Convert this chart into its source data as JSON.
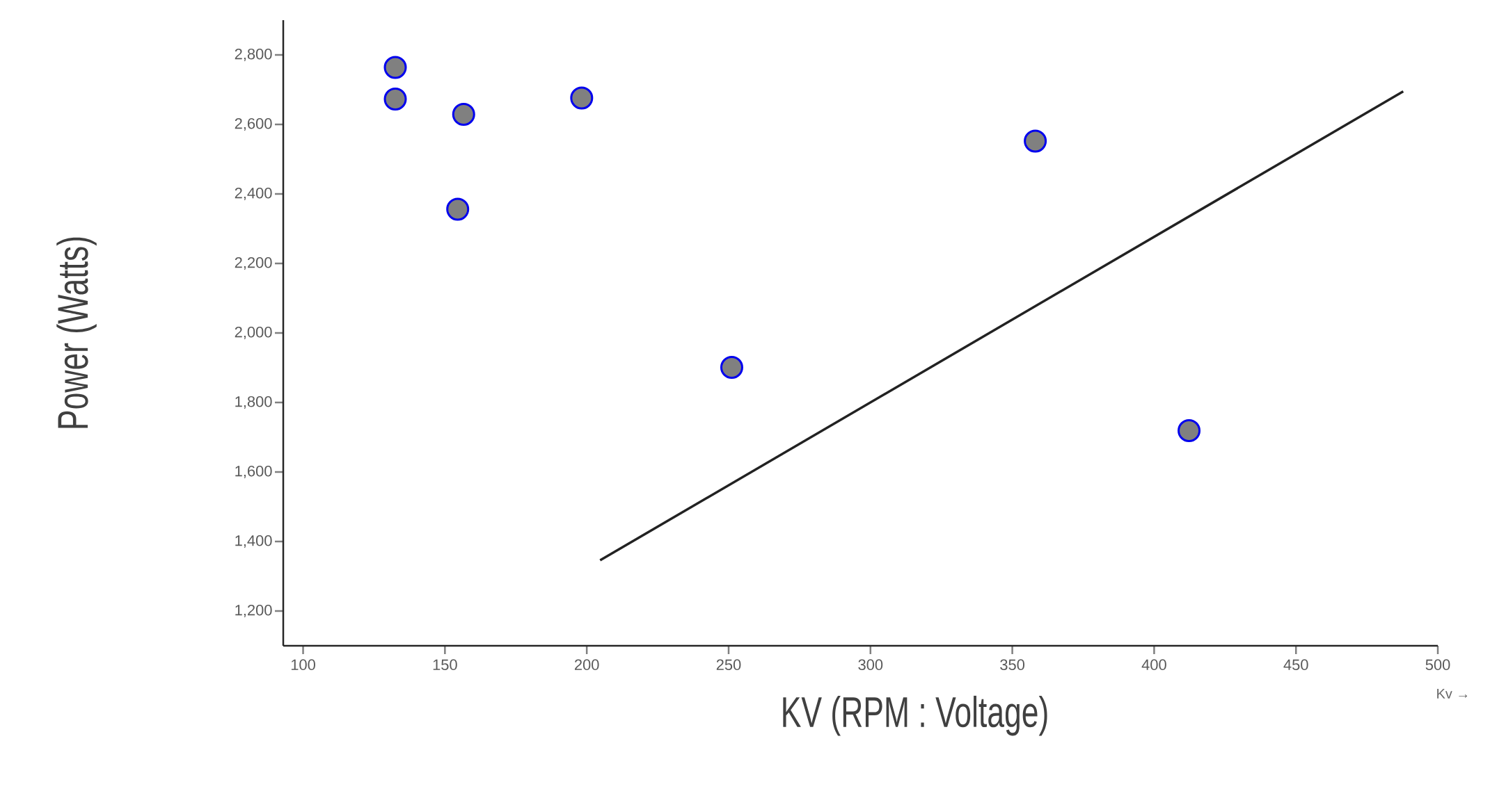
{
  "chart_data": {
    "type": "scatter",
    "xlabel": "KV (RPM : Voltage)",
    "ylabel": "Power (Watts)",
    "annotations": [
      "Kv →"
    ],
    "xlim": [
      93,
      500
    ],
    "ylim": [
      1100,
      2900
    ],
    "xticks": [
      100,
      150,
      200,
      250,
      300,
      350,
      400,
      450,
      500
    ],
    "yticks": [
      {
        "value": 1200,
        "label": "1,200"
      },
      {
        "value": 1400,
        "label": "1,400"
      },
      {
        "value": 1600,
        "label": "1,600"
      },
      {
        "value": 1800,
        "label": "1,800"
      },
      {
        "value": 2000,
        "label": "2,000"
      },
      {
        "value": 2200,
        "label": "2,200"
      },
      {
        "value": 2400,
        "label": "2,400"
      },
      {
        "value": 2600,
        "label": "2,600"
      },
      {
        "value": 2800,
        "label": "2,800"
      }
    ],
    "series": [
      {
        "marker": "circle",
        "color": "#808080",
        "x": [
          132.5,
          132.5,
          156.6,
          198.2,
          154.5,
          358.1,
          251.1,
          412.3
        ],
        "values": [
          2764,
          2673,
          2629,
          2676,
          2356,
          2552,
          1901,
          1719
        ]
      },
      {
        "type": "line",
        "marker": "none",
        "color": "#222222",
        "x": [
          204.7,
          487.8
        ],
        "values": [
          1346,
          2695
        ]
      }
    ]
  }
}
